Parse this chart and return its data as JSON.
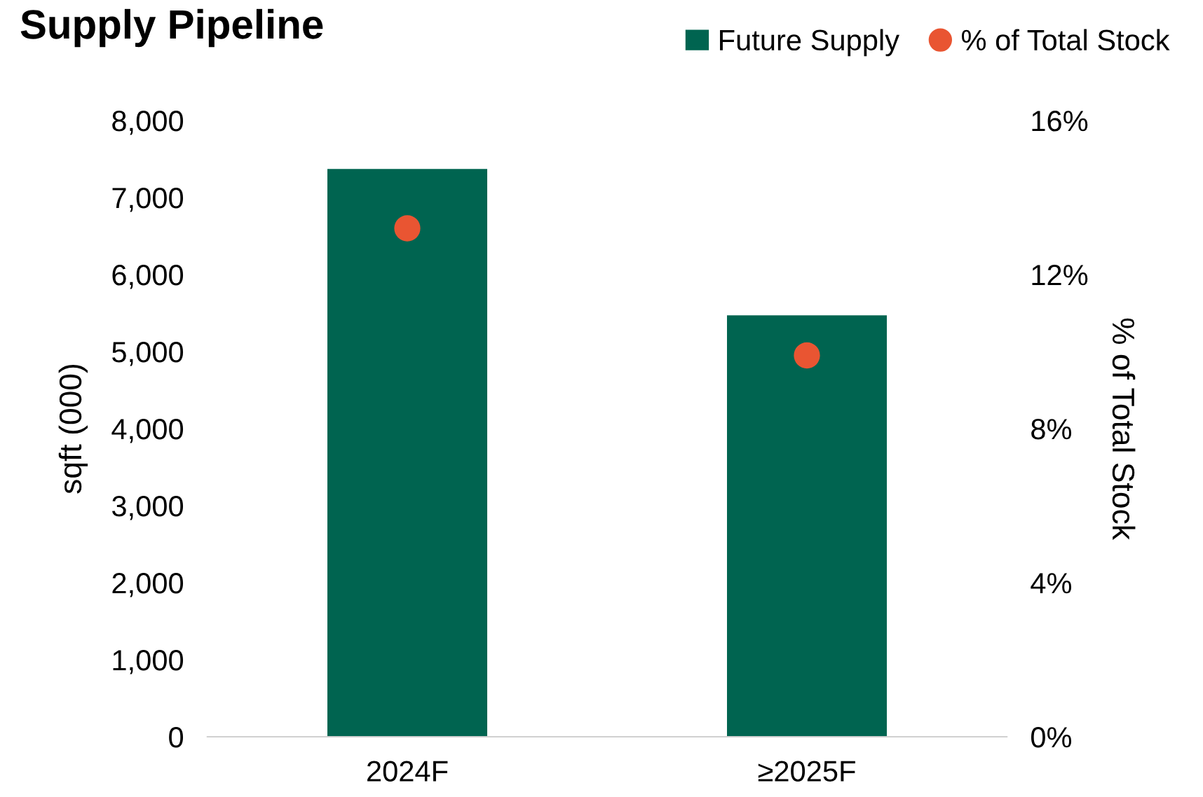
{
  "chart_data": {
    "type": "bar",
    "title": "Supply Pipeline",
    "ylabel": "sqft (000)",
    "y2label": "% of Total Stock",
    "categories": [
      "2024F",
      "≥2025F"
    ],
    "series": [
      {
        "name": "Future Supply",
        "color": "#006450",
        "values": [
          7370,
          5470
        ]
      },
      {
        "name": "% of Total Stock",
        "type": "scatter",
        "axis": "y2",
        "color": "#e95532",
        "values": [
          13.2,
          9.9
        ]
      }
    ],
    "ylim": [
      0,
      8000
    ],
    "yticks": [
      {
        "value": 0,
        "label": "0"
      },
      {
        "value": 1000,
        "label": "1,000"
      },
      {
        "value": 2000,
        "label": "2,000"
      },
      {
        "value": 3000,
        "label": "3,000"
      },
      {
        "value": 4000,
        "label": "4,000"
      },
      {
        "value": 5000,
        "label": "5,000"
      },
      {
        "value": 6000,
        "label": "6,000"
      },
      {
        "value": 7000,
        "label": "7,000"
      },
      {
        "value": 8000,
        "label": "8,000"
      }
    ],
    "y2lim": [
      0,
      16
    ],
    "y2ticks": [
      {
        "value": 0,
        "label": "0%"
      },
      {
        "value": 4,
        "label": "4%"
      },
      {
        "value": 8,
        "label": "8%"
      },
      {
        "value": 12,
        "label": "12%"
      },
      {
        "value": 16,
        "label": "16%"
      }
    ],
    "marker": "circle",
    "grid": false,
    "legend": "top right"
  }
}
